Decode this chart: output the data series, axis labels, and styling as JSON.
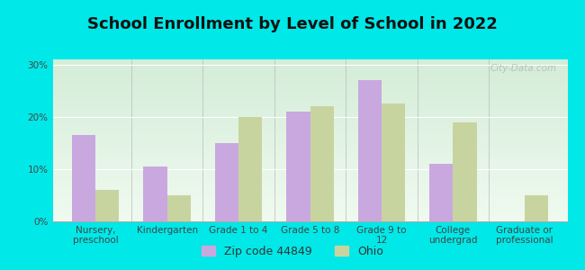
{
  "title": "School Enrollment by Level of School in 2022",
  "categories": [
    "Nursery,\npreschool",
    "Kindergarten",
    "Grade 1 to 4",
    "Grade 5 to 8",
    "Grade 9 to\n12",
    "College\nundergrad",
    "Graduate or\nprofessional"
  ],
  "zip_values": [
    16.5,
    10.5,
    15.0,
    21.0,
    27.0,
    11.0,
    0.0
  ],
  "ohio_values": [
    6.0,
    5.0,
    20.0,
    22.0,
    22.5,
    19.0,
    5.0
  ],
  "zip_color": "#c9a8e0",
  "ohio_color": "#c8d4a0",
  "background_color": "#00e8e8",
  "plot_bg_top": "#d4edd8",
  "plot_bg_bottom": "#f0faf0",
  "ylim": [
    0,
    31
  ],
  "yticks": [
    0,
    10,
    20,
    30
  ],
  "ytick_labels": [
    "0%",
    "10%",
    "20%",
    "30%"
  ],
  "zip_label": "Zip code 44849",
  "ohio_label": "Ohio",
  "watermark": "City-Data.com",
  "title_fontsize": 13,
  "tick_fontsize": 7.5,
  "legend_fontsize": 9,
  "bar_width": 0.33
}
